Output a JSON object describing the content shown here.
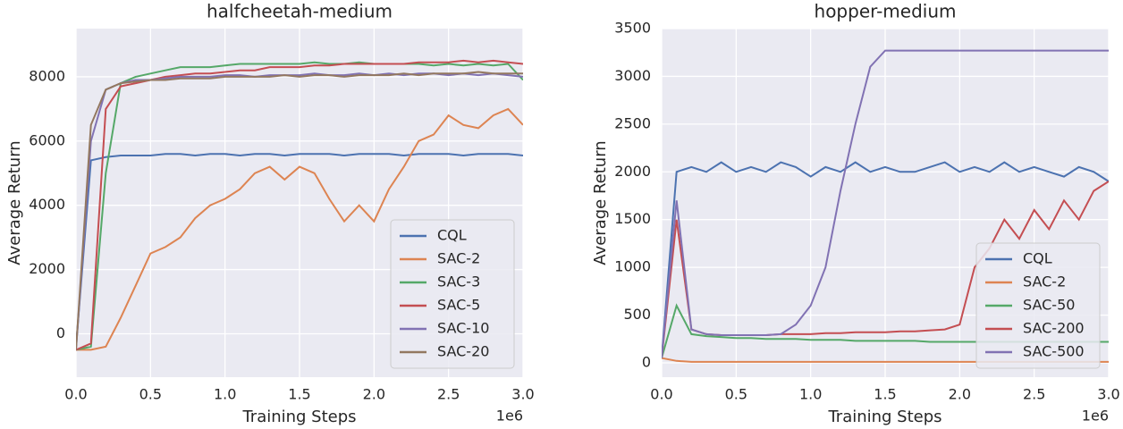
{
  "chart_data": [
    {
      "type": "line",
      "title": "halfcheetah-medium",
      "x_label": "Training Steps",
      "y_label": "Average Return",
      "x_offset_label": "1e6",
      "x": [
        0,
        0.1,
        0.2,
        0.3,
        0.4,
        0.5,
        0.6,
        0.7,
        0.8,
        0.9,
        1.0,
        1.1,
        1.2,
        1.3,
        1.4,
        1.5,
        1.6,
        1.7,
        1.8,
        1.9,
        2.0,
        2.1,
        2.2,
        2.3,
        2.4,
        2.5,
        2.6,
        2.7,
        2.8,
        2.9,
        3.0
      ],
      "xlim": [
        0,
        3.0
      ],
      "xticks": [
        {
          "value": 0,
          "label": "0.0"
        },
        {
          "value": 0.5,
          "label": "0.5"
        },
        {
          "value": 1,
          "label": "1.0"
        },
        {
          "value": 1.5,
          "label": "1.5"
        },
        {
          "value": 2,
          "label": "2.0"
        },
        {
          "value": 2.5,
          "label": "2.5"
        },
        {
          "value": 3,
          "label": "3.0"
        }
      ],
      "ylim": [
        -1350,
        9500
      ],
      "yticks": [
        0,
        2000,
        4000,
        6000,
        8000
      ],
      "grid": true,
      "legend": "lower right",
      "series": [
        {
          "name": "CQL",
          "color": "#4c72b0",
          "values": [
            -400,
            5400,
            5500,
            5550,
            5550,
            5550,
            5600,
            5600,
            5550,
            5600,
            5600,
            5550,
            5600,
            5600,
            5550,
            5600,
            5600,
            5600,
            5550,
            5600,
            5600,
            5600,
            5550,
            5600,
            5600,
            5600,
            5550,
            5600,
            5600,
            5600,
            5550
          ]
        },
        {
          "name": "SAC-2",
          "color": "#dd8452",
          "values": [
            -500,
            -500,
            -400,
            500,
            1500,
            2500,
            2700,
            3000,
            3600,
            4000,
            4200,
            4500,
            5000,
            5200,
            4800,
            5200,
            5000,
            4200,
            3500,
            4000,
            3500,
            4500,
            5200,
            6000,
            6200,
            6800,
            6500,
            6400,
            6800,
            7000,
            6500
          ]
        },
        {
          "name": "SAC-3",
          "color": "#55a868",
          "values": [
            -500,
            -400,
            5000,
            7800,
            8000,
            8100,
            8200,
            8300,
            8300,
            8300,
            8350,
            8400,
            8400,
            8400,
            8400,
            8400,
            8450,
            8400,
            8400,
            8450,
            8400,
            8400,
            8400,
            8400,
            8350,
            8400,
            8350,
            8400,
            8350,
            8400,
            7900
          ]
        },
        {
          "name": "SAC-5",
          "color": "#c44e52",
          "values": [
            -500,
            -300,
            7000,
            7700,
            7800,
            7900,
            8000,
            8050,
            8100,
            8100,
            8150,
            8200,
            8200,
            8300,
            8300,
            8300,
            8350,
            8350,
            8400,
            8400,
            8400,
            8400,
            8400,
            8450,
            8450,
            8450,
            8500,
            8450,
            8500,
            8450,
            8400
          ]
        },
        {
          "name": "SAC-10",
          "color": "#8172b3",
          "values": [
            -500,
            6000,
            7600,
            7800,
            7900,
            7900,
            7950,
            8000,
            8000,
            8000,
            8050,
            8050,
            8000,
            8050,
            8050,
            8050,
            8100,
            8050,
            8050,
            8100,
            8050,
            8100,
            8050,
            8100,
            8100,
            8050,
            8100,
            8050,
            8100,
            8050,
            8000
          ]
        },
        {
          "name": "SAC-20",
          "color": "#937860",
          "values": [
            -500,
            6500,
            7600,
            7800,
            7850,
            7900,
            7900,
            7950,
            7950,
            7950,
            8000,
            8000,
            8000,
            8000,
            8050,
            8000,
            8050,
            8050,
            8000,
            8050,
            8050,
            8050,
            8100,
            8050,
            8100,
            8100,
            8100,
            8150,
            8100,
            8100,
            8100
          ]
        }
      ]
    },
    {
      "type": "line",
      "title": "hopper-medium",
      "x_label": "Training Steps",
      "y_label": "Average Return",
      "x_offset_label": "1e6",
      "x": [
        0,
        0.1,
        0.2,
        0.3,
        0.4,
        0.5,
        0.6,
        0.7,
        0.8,
        0.9,
        1.0,
        1.1,
        1.2,
        1.3,
        1.4,
        1.5,
        1.6,
        1.7,
        1.8,
        1.9,
        2.0,
        2.1,
        2.2,
        2.3,
        2.4,
        2.5,
        2.6,
        2.7,
        2.8,
        2.9,
        3.0
      ],
      "xlim": [
        0,
        3.0
      ],
      "xticks": [
        {
          "value": 0,
          "label": "0.0"
        },
        {
          "value": 0.5,
          "label": "0.5"
        },
        {
          "value": 1,
          "label": "1.0"
        },
        {
          "value": 1.5,
          "label": "1.5"
        },
        {
          "value": 2,
          "label": "2.0"
        },
        {
          "value": 2.5,
          "label": "2.5"
        },
        {
          "value": 3,
          "label": "3.0"
        }
      ],
      "ylim": [
        -150,
        3500
      ],
      "yticks": [
        0,
        500,
        1000,
        1500,
        2000,
        2500,
        3000,
        3500
      ],
      "grid": true,
      "legend": "lower right",
      "series": [
        {
          "name": "CQL",
          "color": "#4c72b0",
          "values": [
            50,
            2000,
            2050,
            2000,
            2100,
            2000,
            2050,
            2000,
            2100,
            2050,
            1950,
            2050,
            2000,
            2100,
            2000,
            2050,
            2000,
            2000,
            2050,
            2100,
            2000,
            2050,
            2000,
            2100,
            2000,
            2050,
            2000,
            1950,
            2050,
            2000,
            1900
          ]
        },
        {
          "name": "SAC-2",
          "color": "#dd8452",
          "values": [
            50,
            20,
            10,
            10,
            10,
            10,
            10,
            10,
            10,
            10,
            10,
            10,
            10,
            10,
            10,
            10,
            10,
            10,
            10,
            10,
            10,
            10,
            10,
            10,
            10,
            10,
            10,
            10,
            10,
            10,
            10
          ]
        },
        {
          "name": "SAC-50",
          "color": "#55a868",
          "values": [
            50,
            600,
            300,
            280,
            270,
            260,
            260,
            250,
            250,
            250,
            240,
            240,
            240,
            230,
            230,
            230,
            230,
            230,
            220,
            220,
            220,
            220,
            220,
            220,
            220,
            220,
            220,
            220,
            220,
            220,
            220
          ]
        },
        {
          "name": "SAC-200",
          "color": "#c44e52",
          "values": [
            50,
            1500,
            350,
            300,
            290,
            290,
            290,
            290,
            300,
            300,
            300,
            310,
            310,
            320,
            320,
            320,
            330,
            330,
            340,
            350,
            400,
            1000,
            1200,
            1500,
            1300,
            1600,
            1400,
            1700,
            1500,
            1800,
            1900
          ]
        },
        {
          "name": "SAC-500",
          "color": "#8172b3",
          "values": [
            50,
            1700,
            350,
            300,
            290,
            290,
            290,
            290,
            300,
            400,
            600,
            1000,
            1800,
            2500,
            3100,
            3270,
            3270,
            3270,
            3270,
            3270,
            3270,
            3270,
            3270,
            3270,
            3270,
            3270,
            3270,
            3270,
            3270,
            3270,
            3270
          ]
        }
      ]
    }
  ]
}
